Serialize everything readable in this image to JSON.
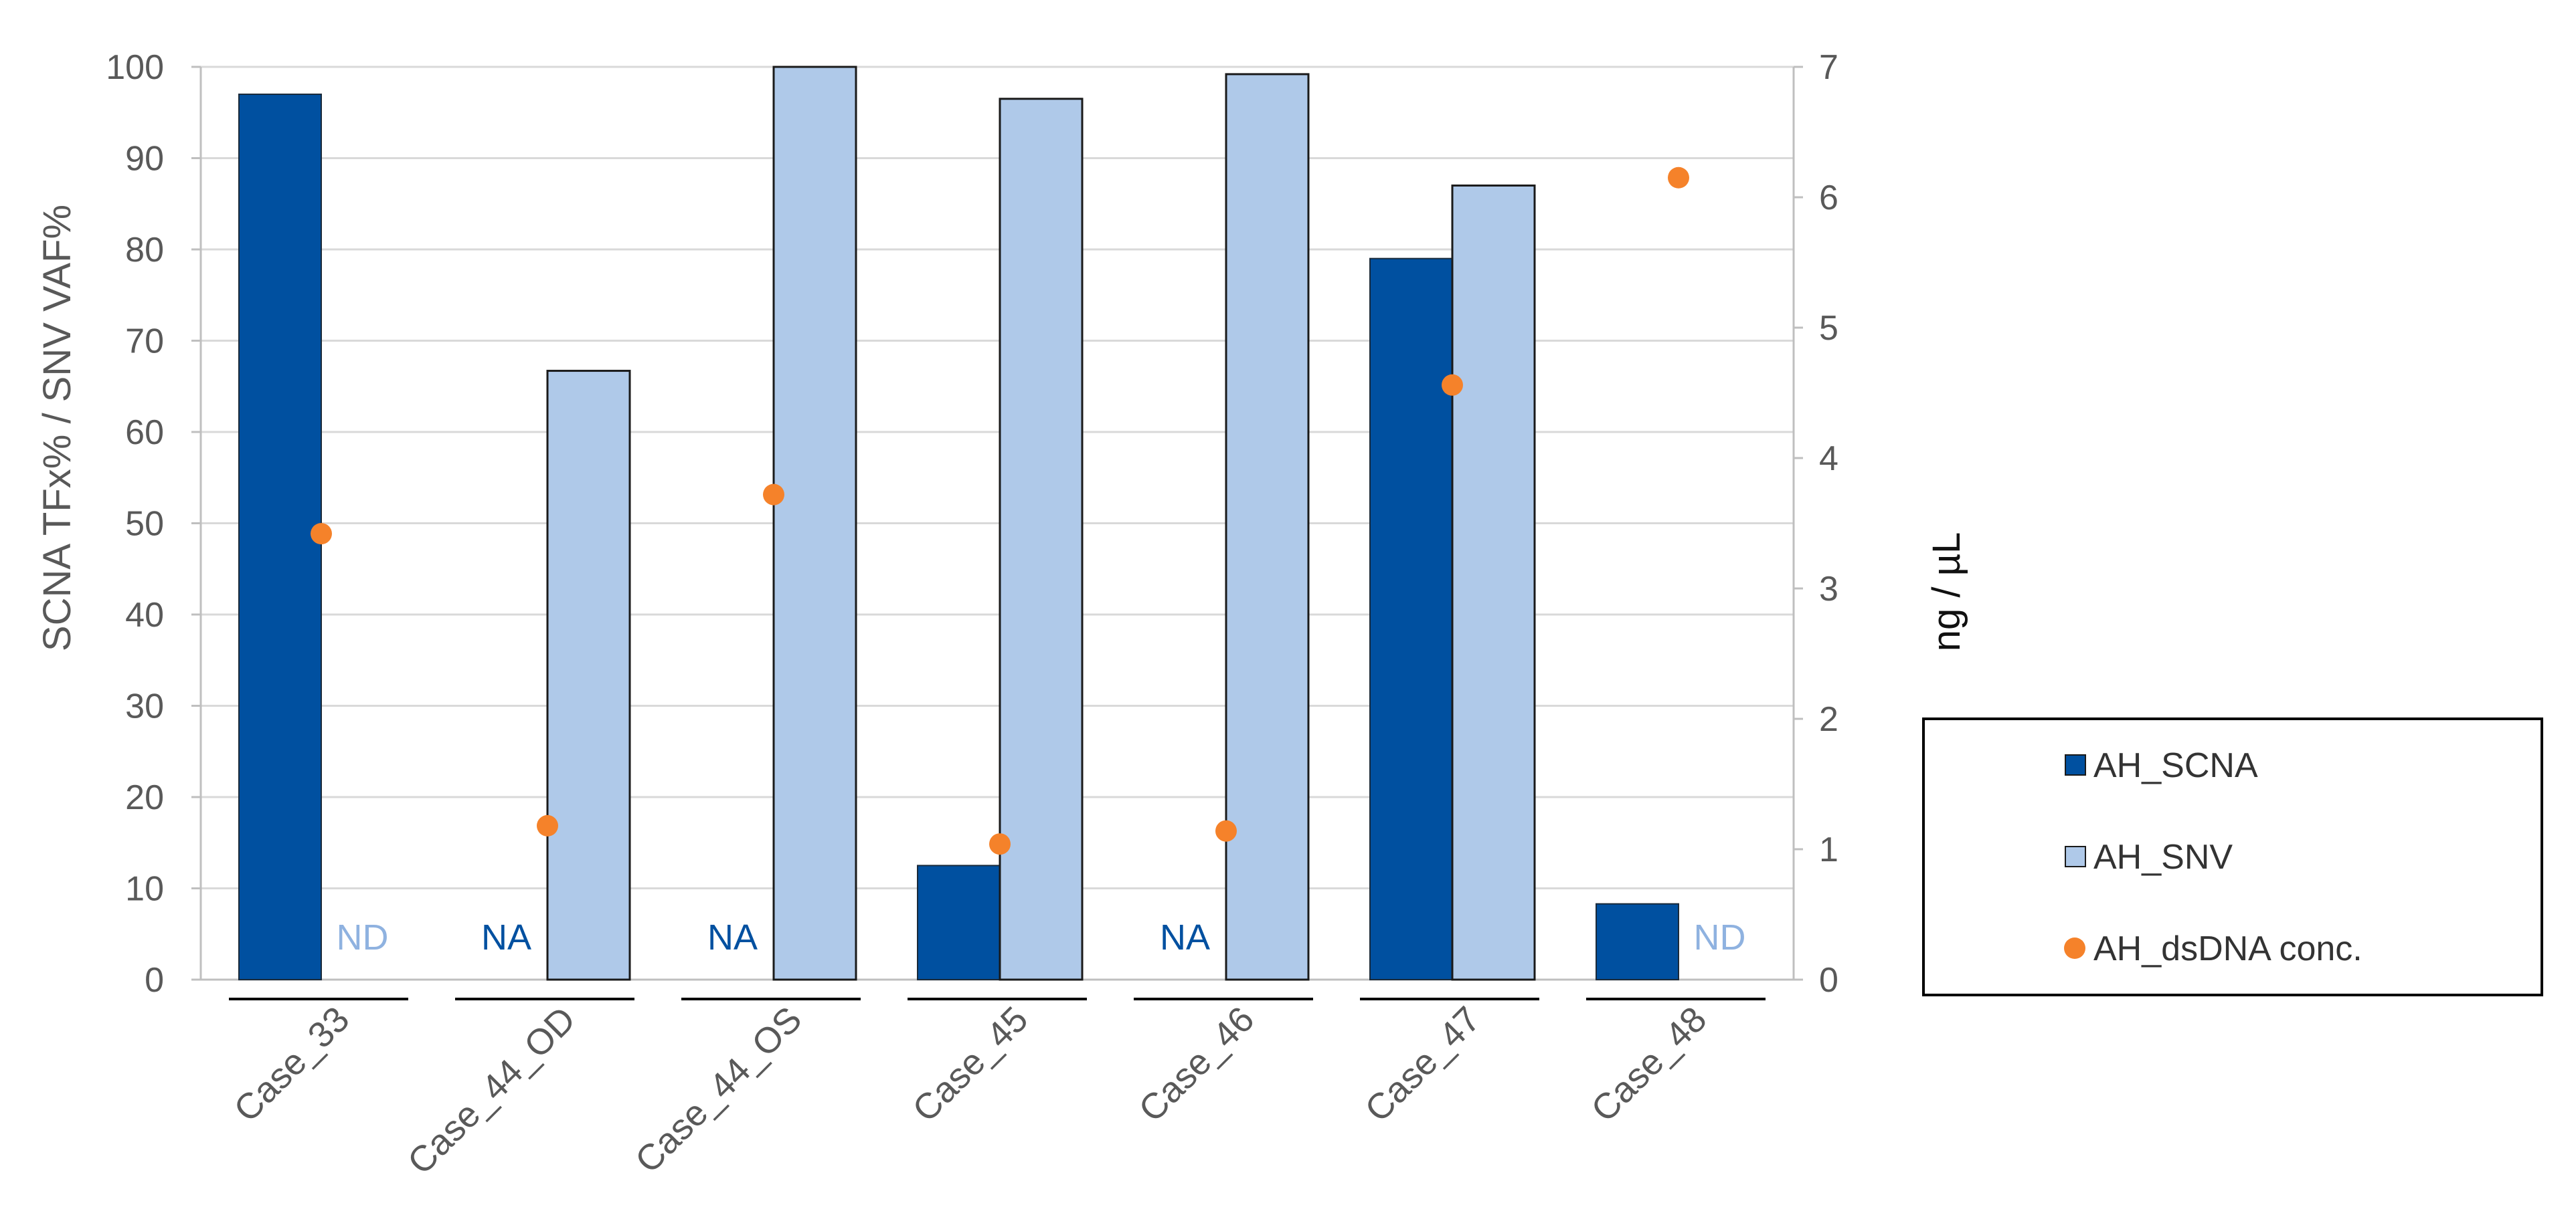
{
  "chart_data": {
    "type": "bar",
    "categories": [
      "Case_33",
      "Case_44_OD",
      "Case_44_OS",
      "Case_45",
      "Case_46",
      "Case_47",
      "Case_48"
    ],
    "series": [
      {
        "name": "AH_SCNA",
        "type": "bar",
        "axis": "left",
        "color": "#0050A0",
        "values": [
          97,
          null,
          null,
          12.5,
          null,
          79,
          8.3
        ]
      },
      {
        "name": "AH_SNV",
        "type": "bar",
        "axis": "left",
        "color": "#AFC9E9",
        "values": [
          null,
          66.7,
          100,
          96.5,
          99.2,
          87,
          null
        ]
      },
      {
        "name": "AH_dsDNA conc.",
        "type": "scatter",
        "axis": "right",
        "color": "#F5822A",
        "values": [
          3.42,
          1.18,
          3.72,
          1.04,
          1.14,
          4.56,
          6.15
        ]
      }
    ],
    "annotations": [
      {
        "category": "Case_33",
        "series": "AH_SNV",
        "text": "ND",
        "color": "#8FB2E0"
      },
      {
        "category": "Case_44_OD",
        "series": "AH_SCNA",
        "text": "NA",
        "color": "#0050A0"
      },
      {
        "category": "Case_44_OS",
        "series": "AH_SCNA",
        "text": "NA",
        "color": "#0050A0"
      },
      {
        "category": "Case_46",
        "series": "AH_SCNA",
        "text": "NA",
        "color": "#0050A0"
      },
      {
        "category": "Case_48",
        "series": "AH_SNV",
        "text": "ND",
        "color": "#8FB2E0"
      }
    ],
    "title": "",
    "ylabel": "SCNA TFx% / SNV VAF%",
    "y2label": "ng / µL",
    "ylim": [
      0,
      100
    ],
    "y2lim": [
      0,
      7
    ],
    "yticks": [
      "0",
      "10",
      "20",
      "30",
      "40",
      "50",
      "60",
      "70",
      "80",
      "90",
      "100"
    ],
    "y2ticks": [
      "0",
      "1",
      "2",
      "3",
      "4",
      "5",
      "6",
      "7"
    ],
    "grid": true,
    "legend_position": "right"
  }
}
